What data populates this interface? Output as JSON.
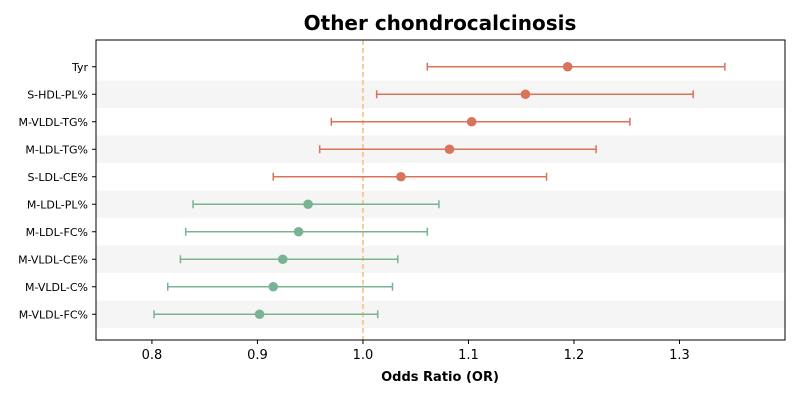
{
  "chart_data": {
    "type": "forest",
    "title": "Other chondrocalcinosis",
    "xlabel": "Odds Ratio (OR)",
    "ylabel": "",
    "xlim": [
      0.747,
      1.4
    ],
    "xticks": [
      0.8,
      0.9,
      1.0,
      1.1,
      1.2,
      1.3
    ],
    "xtick_labels": [
      "0.8",
      "0.9",
      "1.0",
      "1.1",
      "1.2",
      "1.3"
    ],
    "reference_line": 1.0,
    "colors": {
      "positive": "#d9735a",
      "negative": "#7ab394",
      "reference": "#f0c272",
      "stripe": "#f5f5f5"
    },
    "rows": [
      {
        "label": "Tyr",
        "or": 1.194,
        "lower": 1.061,
        "upper": 1.343
      },
      {
        "label": "S-HDL-PL%",
        "or": 1.154,
        "lower": 1.013,
        "upper": 1.313
      },
      {
        "label": "M-VLDL-TG%",
        "or": 1.103,
        "lower": 0.97,
        "upper": 1.253
      },
      {
        "label": "M-LDL-TG%",
        "or": 1.082,
        "lower": 0.959,
        "upper": 1.221
      },
      {
        "label": "S-LDL-CE%",
        "or": 1.036,
        "lower": 0.915,
        "upper": 1.174
      },
      {
        "label": "M-LDL-PL%",
        "or": 0.948,
        "lower": 0.839,
        "upper": 1.072
      },
      {
        "label": "M-LDL-FC%",
        "or": 0.939,
        "lower": 0.832,
        "upper": 1.061
      },
      {
        "label": "M-VLDL-CE%",
        "or": 0.924,
        "lower": 0.827,
        "upper": 1.033
      },
      {
        "label": "M-VLDL-C%",
        "or": 0.915,
        "lower": 0.815,
        "upper": 1.028
      },
      {
        "label": "M-VLDL-FC%",
        "or": 0.902,
        "lower": 0.802,
        "upper": 1.014
      }
    ]
  }
}
